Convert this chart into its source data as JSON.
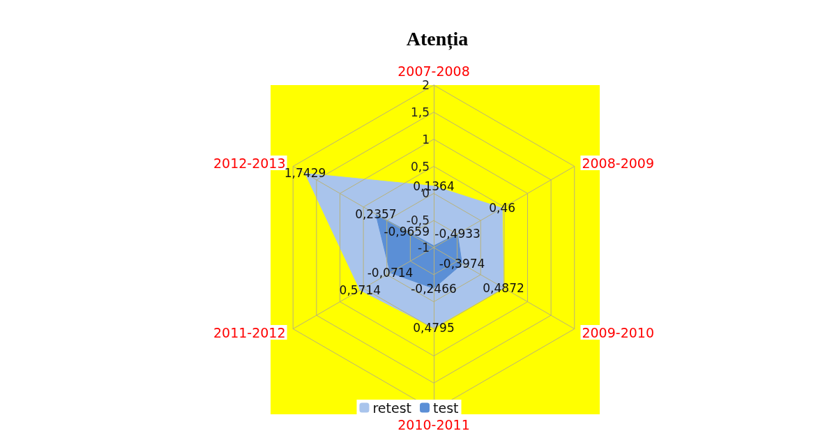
{
  "chart_data": {
    "type": "radar",
    "title": "Atenția",
    "categories": [
      "2007-2008",
      "2008-2009",
      "2009-2010",
      "2010-2011",
      "2011-2012",
      "2012-2013"
    ],
    "ylim": [
      -1,
      2
    ],
    "yticks": [
      -1,
      {
        "value": -0.5,
        "label": "-0,5"
      },
      0,
      {
        "value": 0.5,
        "label": "0,5"
      },
      1,
      {
        "value": 1.5,
        "label": "1,5"
      },
      2
    ],
    "legend": "bottom",
    "grid": true,
    "series": [
      {
        "name": "retest",
        "color": "#a9c4ec",
        "values": [
          0.1364,
          0.46,
          0.4872,
          0.4795,
          0.5714,
          1.7429
        ],
        "value_labels": [
          "0,1364",
          "0,46",
          "0,4872",
          "0,4795",
          "0,5714",
          "1,7429"
        ]
      },
      {
        "name": "test",
        "color": "#5b8fd6",
        "values": [
          -0.9659,
          -0.4933,
          -0.3974,
          -0.2466,
          -0.0714,
          0.2357
        ],
        "value_labels": [
          "-0,9659",
          "-0,4933",
          "-0,3974",
          "-0,2466",
          "-0,0714",
          "0,2357"
        ]
      }
    ]
  }
}
